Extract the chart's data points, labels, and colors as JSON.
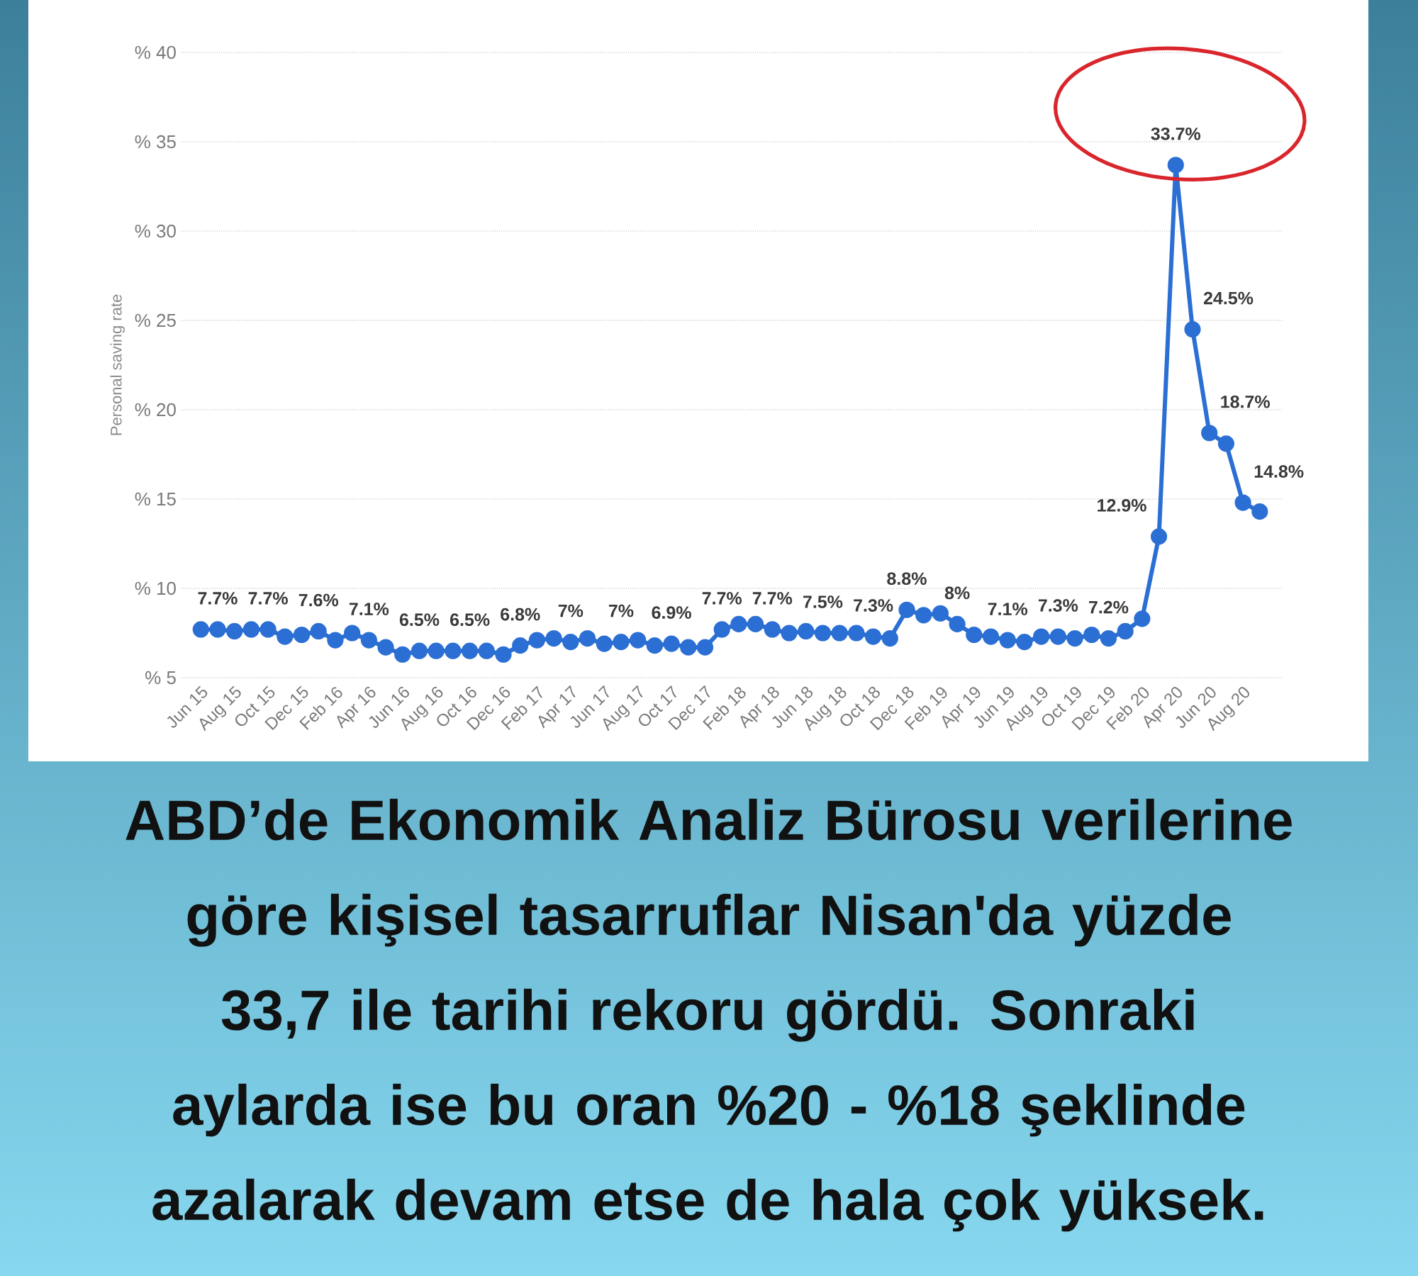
{
  "chart_data": {
    "type": "line",
    "ylabel": "Personal saving rate",
    "categories": [
      "Jun 15",
      null,
      "Aug 15",
      null,
      "Oct 15",
      null,
      "Dec 15",
      null,
      "Feb 16",
      null,
      "Apr 16",
      null,
      "Jun 16",
      null,
      "Aug 16",
      null,
      "Oct 16",
      null,
      "Dec 16",
      null,
      "Feb 17",
      null,
      "Apr 17",
      null,
      "Jun 17",
      null,
      "Aug 17",
      null,
      "Oct 17",
      null,
      "Dec 17",
      null,
      "Feb 18",
      null,
      "Apr 18",
      null,
      "Jun 18",
      null,
      "Aug 18",
      null,
      "Oct 18",
      null,
      "Dec 18",
      null,
      "Feb 19",
      null,
      "Apr 19",
      null,
      "Jun 19",
      null,
      "Aug 19",
      null,
      "Oct 19",
      null,
      "Dec 19",
      null,
      "Feb 20",
      null,
      "Apr 20",
      null,
      "Jun 20",
      null,
      "Aug 20",
      null
    ],
    "series": [
      {
        "color": "#2b6fd4",
        "values": [
          7.7,
          7.7,
          7.6,
          7.7,
          7.7,
          7.3,
          7.4,
          7.6,
          7.1,
          7.5,
          7.1,
          6.7,
          6.3,
          6.5,
          6.5,
          6.5,
          6.5,
          6.5,
          6.3,
          6.8,
          7.1,
          7.2,
          7.0,
          7.2,
          6.9,
          7.0,
          7.1,
          6.8,
          6.9,
          6.7,
          6.7,
          7.7,
          8.0,
          8.0,
          7.7,
          7.5,
          7.6,
          7.5,
          7.5,
          7.5,
          7.3,
          7.2,
          8.8,
          8.5,
          8.6,
          8.0,
          7.4,
          7.3,
          7.1,
          7.0,
          7.3,
          7.3,
          7.2,
          7.4,
          7.2,
          7.6,
          8.3,
          12.9,
          33.7,
          24.5,
          18.7,
          18.1,
          14.8,
          14.3
        ],
        "value_labels": [
          null,
          "7.7%",
          null,
          null,
          "7.7%",
          null,
          null,
          "7.6%",
          null,
          null,
          "7.1%",
          null,
          null,
          "6.5%",
          null,
          null,
          "6.5%",
          null,
          null,
          "6.8%",
          null,
          null,
          "7%",
          null,
          null,
          "7%",
          null,
          null,
          "6.9%",
          null,
          null,
          "7.7%",
          null,
          null,
          "7.7%",
          null,
          null,
          "7.5%",
          null,
          null,
          "7.3%",
          null,
          "8.8%",
          null,
          null,
          "8%",
          null,
          null,
          "7.1%",
          null,
          null,
          "7.3%",
          null,
          null,
          "7.2%",
          null,
          null,
          "12.9%",
          "33.7%",
          "24.5%",
          "18.7%",
          null,
          "14.8%",
          null
        ]
      }
    ],
    "ylim": [
      5,
      40
    ],
    "yticks": [
      {
        "value": 5,
        "label": "% 5"
      },
      {
        "value": 10,
        "label": "% 10"
      },
      {
        "value": 15,
        "label": "% 15"
      },
      {
        "value": 20,
        "label": "% 20"
      },
      {
        "value": 25,
        "label": "% 25"
      },
      {
        "value": 30,
        "label": "% 30"
      },
      {
        "value": 35,
        "label": "% 35"
      },
      {
        "value": 40,
        "label": "% 40"
      }
    ],
    "grid": "y",
    "marker": "circle",
    "annotations": [
      "ABD’de Ekonomik Analiz Bürosu verilerine göre kişisel tasarruflar Nisan'da yüzde 33,7 ile tarihi rekoru gördü. Sonraki aylarda ise bu oran %20 - %18 şeklinde azalarak devam etse de hala çok yüksek."
    ]
  }
}
